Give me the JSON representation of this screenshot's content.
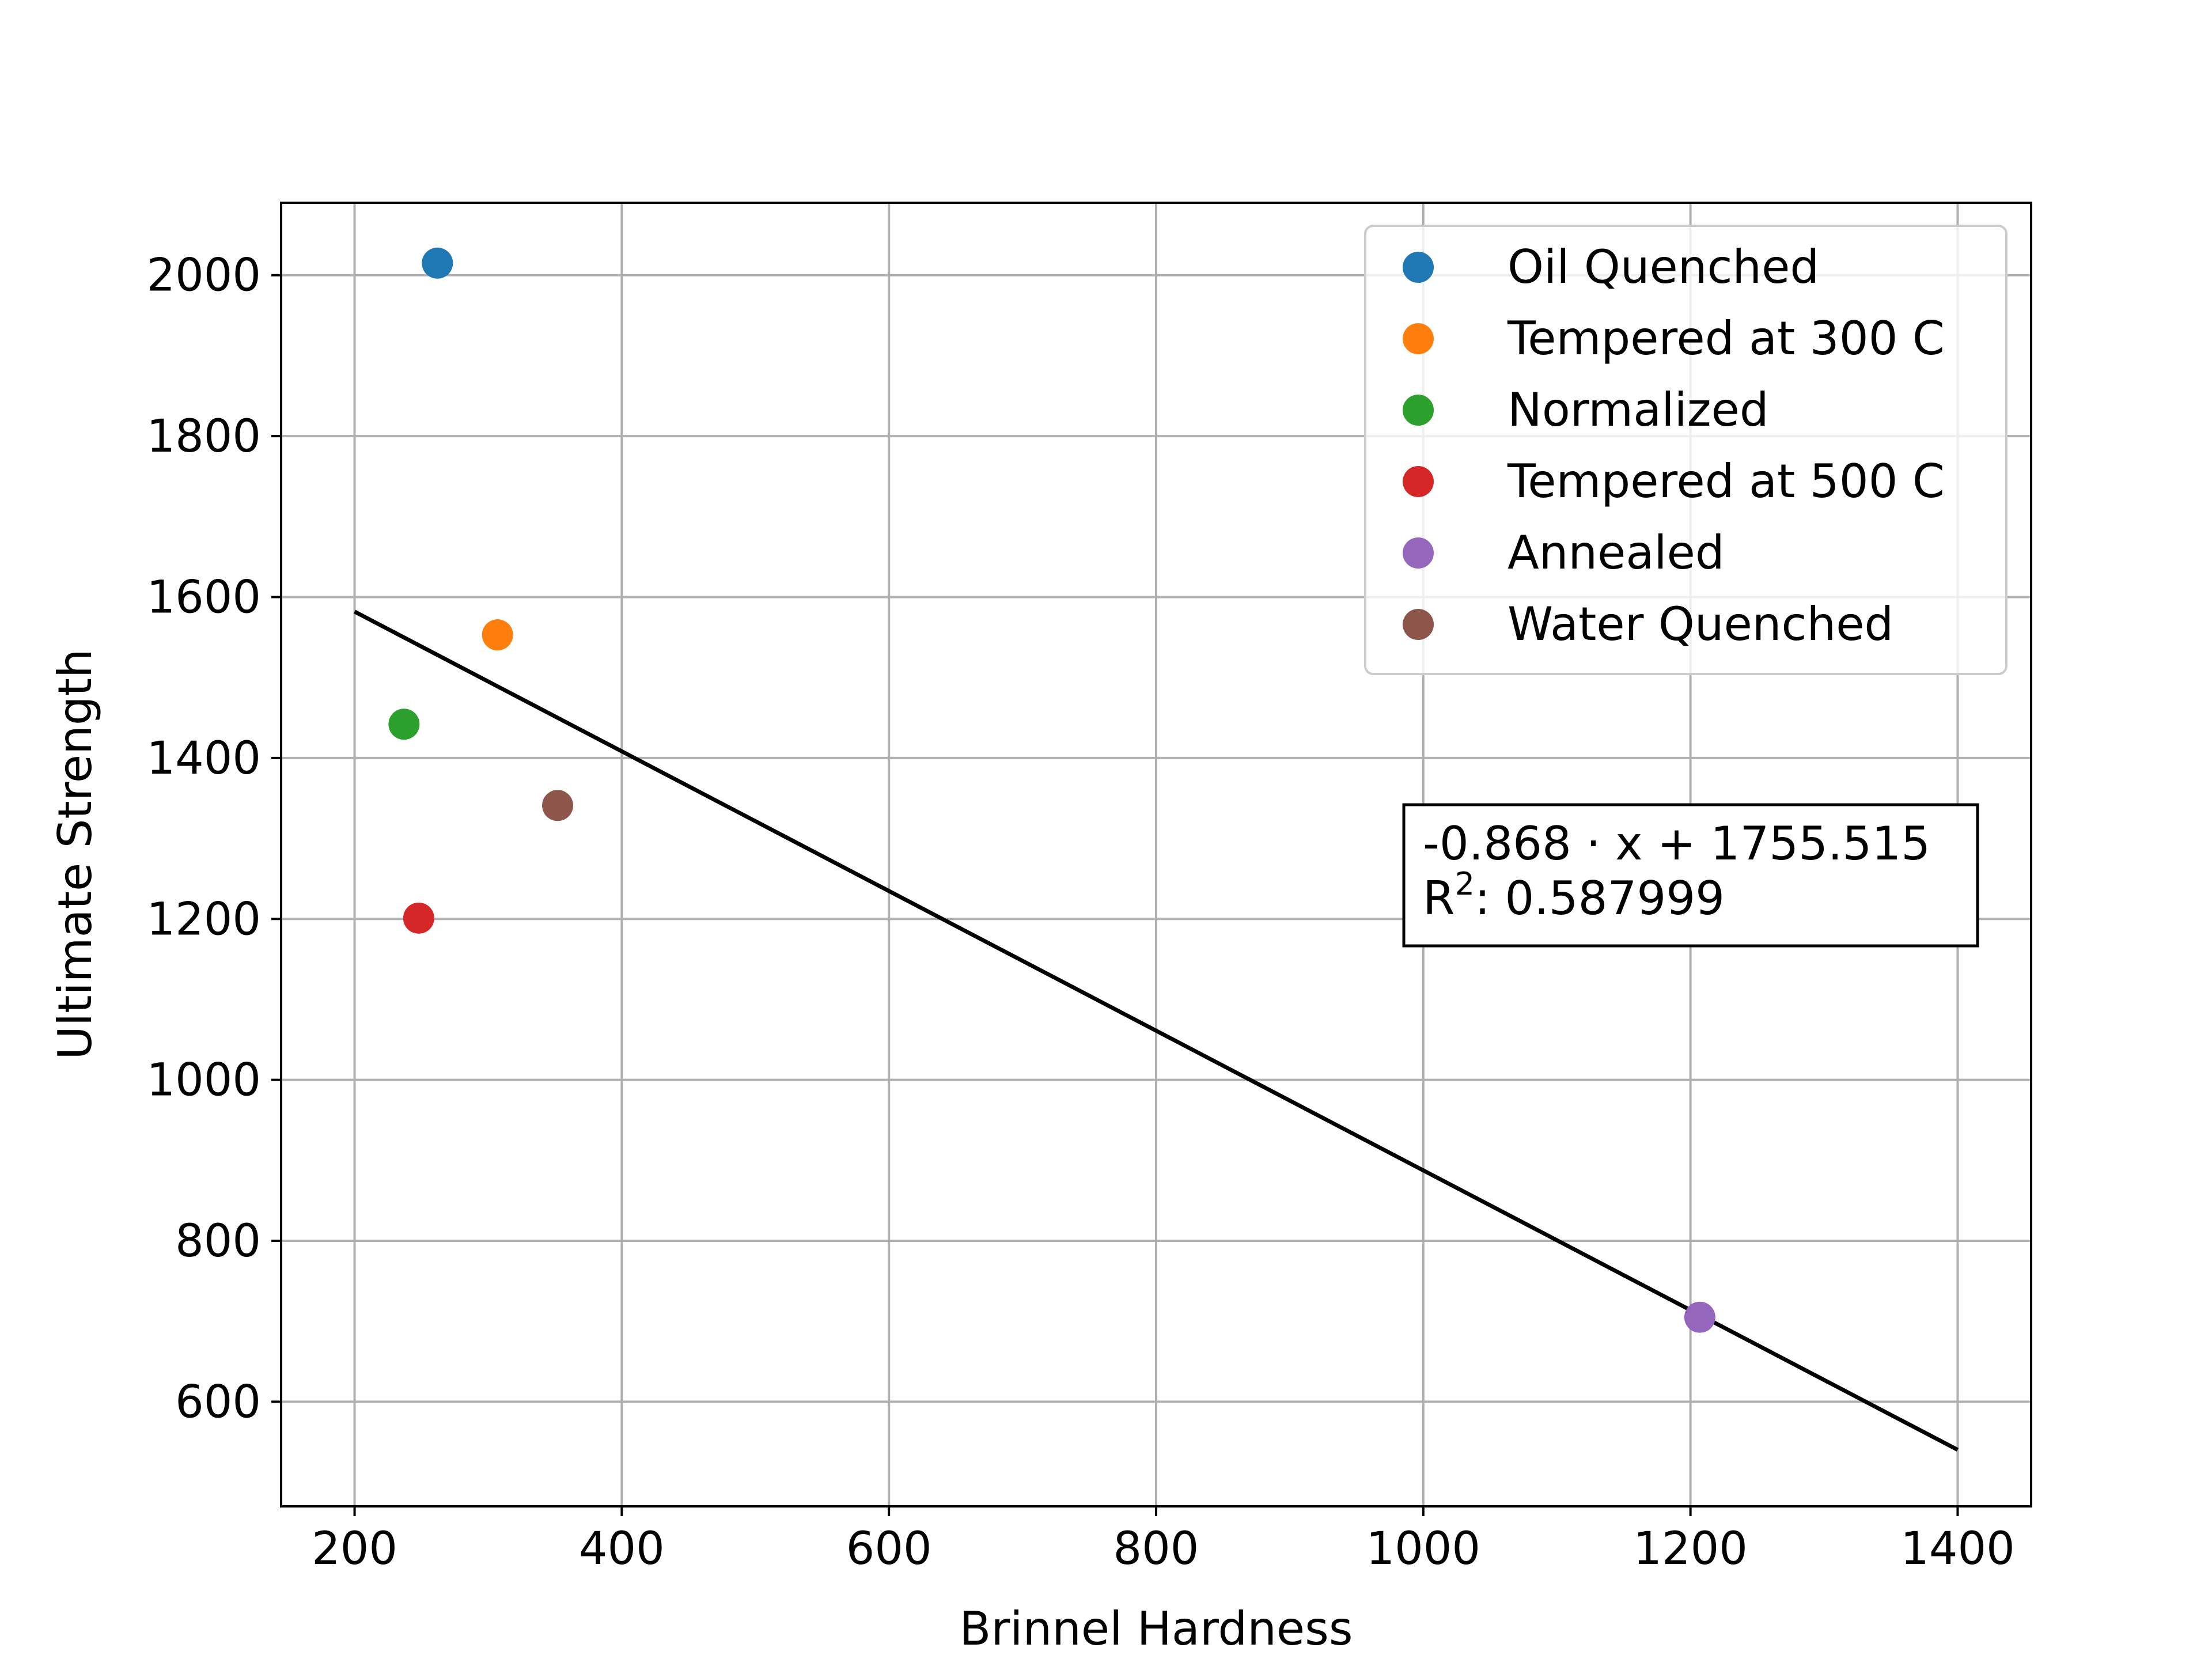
{
  "chart_data": {
    "type": "scatter",
    "title": "",
    "xlabel": "Brinnel Hardness",
    "ylabel": "Ultimate Strength",
    "xlim": [
      145,
      1455
    ],
    "ylim": [
      470,
      2090
    ],
    "xticks": [
      200,
      400,
      600,
      800,
      1000,
      1200,
      1400
    ],
    "yticks": [
      600,
      800,
      1000,
      1200,
      1400,
      1600,
      1800,
      2000
    ],
    "grid": true,
    "legend_position": "upper right",
    "series": [
      {
        "name": "Oil Quenched",
        "color": "#1f77b4",
        "x": [
          262
        ],
        "y": [
          2015
        ]
      },
      {
        "name": "Tempered at 300 C",
        "color": "#ff7f0e",
        "x": [
          307
        ],
        "y": [
          1553
        ]
      },
      {
        "name": "Normalized",
        "color": "#2ca02c",
        "x": [
          237
        ],
        "y": [
          1442
        ]
      },
      {
        "name": "Tempered at 500 C",
        "color": "#d62728",
        "x": [
          248
        ],
        "y": [
          1201
        ]
      },
      {
        "name": "Annealed",
        "color": "#9467bd",
        "x": [
          1207
        ],
        "y": [
          705
        ]
      },
      {
        "name": "Water Quenched",
        "color": "#8c564b",
        "x": [
          352
        ],
        "y": [
          1341
        ]
      }
    ],
    "fit_line": {
      "x": [
        200,
        1400
      ],
      "y": [
        1581.9,
        540.3
      ],
      "color": "#000000"
    },
    "annotation": {
      "equation": "-0.868 · x + 1755.515",
      "r2_prefix": "R",
      "r2_sup": "2",
      "r2_value": ": 0.587999"
    }
  }
}
